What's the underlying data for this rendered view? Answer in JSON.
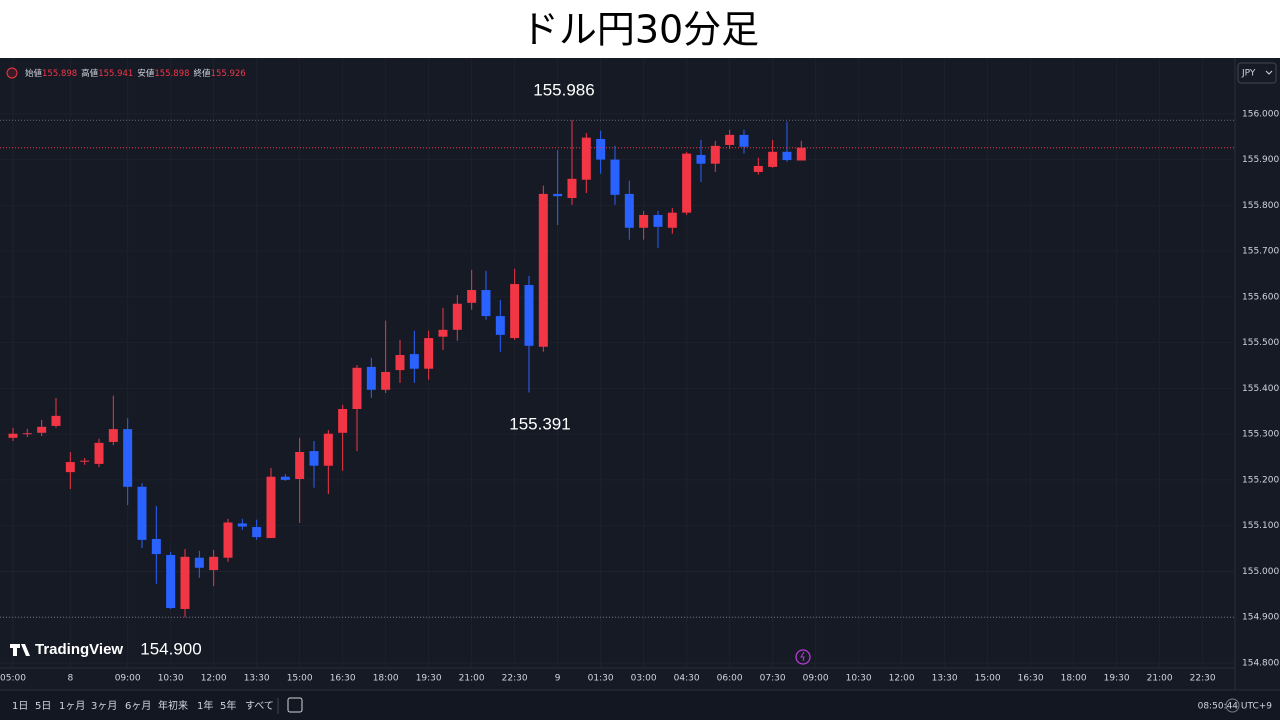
{
  "chart_data": {
    "type": "candlestick",
    "title": "ドル円30分足",
    "categories": [
      "05:00",
      null,
      null,
      null,
      "8",
      null,
      null,
      null,
      "09:00",
      null,
      null,
      "10:30",
      null,
      null,
      "12:00",
      null,
      null,
      "13:30",
      null,
      null,
      "15:00",
      null,
      null,
      "16:30",
      null,
      null,
      "18:00",
      null,
      null,
      "19:30",
      null,
      null,
      "21:00",
      null,
      null,
      "22:30",
      null,
      null,
      "9",
      null,
      null,
      "01:30",
      null,
      null,
      "03:00",
      null,
      null,
      "04:30",
      null,
      null,
      "06:00",
      null,
      null,
      "07:30",
      null,
      null,
      "09:00",
      null,
      null,
      "10:30",
      null,
      null,
      "12:00",
      null,
      null,
      "13:30",
      null,
      null,
      "15:00",
      null,
      null,
      "16:30",
      null,
      null,
      "18:00",
      null,
      null,
      "19:30",
      null,
      null,
      "21:00",
      null,
      null,
      "22:30"
    ],
    "open": [
      155.292,
      155.3,
      155.303,
      155.318,
      155.217,
      155.24,
      155.235,
      155.283,
      155.311,
      155.185,
      155.071,
      155.036,
      154.918,
      155.03,
      155.003,
      155.03,
      155.105,
      155.097,
      155.073,
      155.207,
      155.202,
      155.263,
      155.231,
      155.303,
      155.355,
      155.447,
      155.397,
      155.44,
      155.475,
      155.443,
      155.513,
      155.528,
      155.587,
      155.615,
      155.558,
      155.51,
      155.626,
      155.491,
      155.825,
      155.816,
      155.856,
      155.945,
      155.9,
      155.825,
      155.751,
      155.779,
      155.751,
      155.784,
      155.91,
      155.891,
      155.932,
      155.954,
      155.873,
      155.884,
      155.917,
      155.898,
      null,
      null,
      null,
      null,
      null,
      null,
      null,
      null,
      null,
      null,
      null,
      null,
      null,
      null,
      null,
      null,
      null,
      null,
      null,
      null,
      null,
      null,
      null,
      null,
      null,
      null,
      null,
      null
    ],
    "high": [
      155.314,
      155.312,
      155.331,
      155.379,
      155.261,
      155.248,
      155.29,
      155.384,
      155.335,
      155.193,
      155.143,
      155.043,
      155.049,
      155.045,
      155.047,
      155.115,
      155.115,
      155.113,
      155.226,
      155.213,
      155.292,
      155.285,
      155.309,
      155.364,
      155.451,
      155.467,
      155.548,
      155.506,
      155.526,
      155.526,
      155.576,
      155.604,
      155.659,
      155.657,
      155.593,
      155.661,
      155.646,
      155.843,
      155.921,
      155.986,
      155.958,
      155.963,
      155.93,
      155.854,
      155.788,
      155.788,
      155.794,
      155.917,
      155.943,
      155.941,
      155.965,
      155.965,
      155.904,
      155.943,
      155.983,
      155.941,
      null,
      null,
      null,
      null,
      null,
      null,
      null,
      null,
      null,
      null,
      null,
      null,
      null,
      null,
      null,
      null,
      null,
      null,
      null,
      null,
      null,
      null,
      null,
      null,
      null,
      null,
      null,
      null
    ],
    "low": [
      155.285,
      155.294,
      155.296,
      155.314,
      155.18,
      155.233,
      155.228,
      155.276,
      155.145,
      155.051,
      154.973,
      154.918,
      154.9,
      154.986,
      154.968,
      155.021,
      155.091,
      155.069,
      155.073,
      155.198,
      155.106,
      155.183,
      155.169,
      155.22,
      155.263,
      155.379,
      155.39,
      155.412,
      155.412,
      155.419,
      155.484,
      155.504,
      155.572,
      155.55,
      155.48,
      155.506,
      155.391,
      155.48,
      155.757,
      155.801,
      155.827,
      155.869,
      155.801,
      155.725,
      155.725,
      155.707,
      155.738,
      155.779,
      155.851,
      155.873,
      155.923,
      155.913,
      155.867,
      155.882,
      155.895,
      155.898,
      null,
      null,
      null,
      null,
      null,
      null,
      null,
      null,
      null,
      null,
      null,
      null,
      null,
      null,
      null,
      null,
      null,
      null,
      null,
      null,
      null,
      null,
      null,
      null,
      null,
      null,
      null,
      null
    ],
    "close": [
      155.301,
      155.302,
      155.316,
      155.34,
      155.239,
      155.242,
      155.281,
      155.311,
      155.185,
      155.069,
      155.038,
      154.92,
      155.032,
      155.008,
      155.032,
      155.107,
      155.098,
      155.075,
      155.207,
      155.2,
      155.261,
      155.231,
      155.301,
      155.355,
      155.445,
      155.397,
      155.436,
      155.473,
      155.443,
      155.51,
      155.528,
      155.585,
      155.615,
      155.558,
      155.517,
      155.628,
      155.493,
      155.825,
      155.82,
      155.858,
      155.948,
      155.9,
      155.823,
      155.751,
      155.779,
      155.753,
      155.784,
      155.913,
      155.891,
      155.93,
      155.954,
      155.928,
      155.886,
      155.917,
      155.899,
      155.926,
      null,
      null,
      null,
      null,
      null,
      null,
      null,
      null,
      null,
      null,
      null,
      null,
      null,
      null,
      null,
      null,
      null,
      null,
      null,
      null,
      null,
      null,
      null,
      null,
      null,
      null,
      null,
      null
    ],
    "up_color": "#f23645",
    "down_color": "#2962ff",
    "ylim": [
      154.789,
      156.122
    ],
    "yticks": [
      {
        "value": 154.8,
        "label": "154.800"
      },
      {
        "value": 154.9,
        "label": "154.900"
      },
      {
        "value": 155.0,
        "label": "155.000"
      },
      {
        "value": 155.1,
        "label": "155.100"
      },
      {
        "value": 155.2,
        "label": "155.200"
      },
      {
        "value": 155.3,
        "label": "155.300"
      },
      {
        "value": 155.4,
        "label": "155.400"
      },
      {
        "value": 155.5,
        "label": "155.500"
      },
      {
        "value": 155.6,
        "label": "155.600"
      },
      {
        "value": 155.7,
        "label": "155.700"
      },
      {
        "value": 155.8,
        "label": "155.800"
      },
      {
        "value": 155.9,
        "label": "155.900"
      },
      {
        "value": 156.0,
        "label": "156.000"
      }
    ],
    "grid": true,
    "price_labels": [
      155.986,
      155.391,
      {
        "value": 154.9,
        "label": "154.900"
      }
    ],
    "ohlc_names": [
      "始値",
      "高値",
      "安値",
      "終値"
    ]
  },
  "ui": {
    "currency": "JPY",
    "brand": "TradingView",
    "ranges": [
      "1日",
      "5日",
      "1ヶ月",
      "3ヶ月",
      "6ヶ月",
      "年初来",
      "1年",
      "5年",
      "すべて"
    ],
    "clock": "08:50:44 UTC+9"
  }
}
